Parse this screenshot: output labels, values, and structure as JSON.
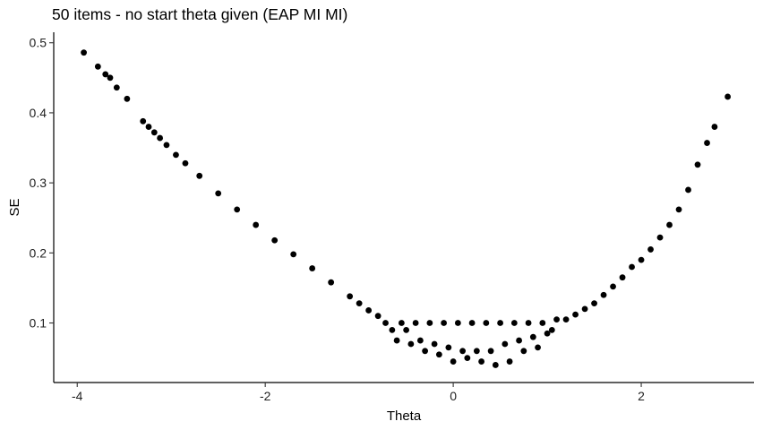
{
  "chart_data": {
    "type": "scatter",
    "title": "50 items - no start theta given (EAP MI MI)",
    "xlabel": "Theta",
    "ylabel": "SE",
    "xlim": [
      -4.25,
      3.2
    ],
    "ylim": [
      0.015,
      0.515
    ],
    "x_ticks": [
      -4,
      -2,
      0,
      2
    ],
    "x_tick_labels": [
      "-4",
      "-2",
      "0",
      "2"
    ],
    "y_ticks": [
      0.1,
      0.2,
      0.3,
      0.4,
      0.5
    ],
    "y_tick_labels": [
      "0.1",
      "0.2",
      "0.3",
      "0.4",
      "0.5"
    ],
    "grid": false,
    "legend": "none",
    "point_color": "#000000",
    "series": [
      {
        "values": [
          {
            "x": -3.93,
            "y": 0.486
          },
          {
            "x": -3.78,
            "y": 0.466
          },
          {
            "x": -3.7,
            "y": 0.455
          },
          {
            "x": -3.65,
            "y": 0.45
          },
          {
            "x": -3.58,
            "y": 0.436
          },
          {
            "x": -3.47,
            "y": 0.42
          },
          {
            "x": -3.3,
            "y": 0.388
          },
          {
            "x": -3.24,
            "y": 0.38
          },
          {
            "x": -3.18,
            "y": 0.372
          },
          {
            "x": -3.12,
            "y": 0.364
          },
          {
            "x": -3.05,
            "y": 0.354
          },
          {
            "x": -2.95,
            "y": 0.34
          },
          {
            "x": -2.85,
            "y": 0.328
          },
          {
            "x": -2.7,
            "y": 0.31
          },
          {
            "x": -2.5,
            "y": 0.285
          },
          {
            "x": -2.3,
            "y": 0.262
          },
          {
            "x": -2.1,
            "y": 0.24
          },
          {
            "x": -1.9,
            "y": 0.218
          },
          {
            "x": -1.7,
            "y": 0.198
          },
          {
            "x": -1.5,
            "y": 0.178
          },
          {
            "x": -1.3,
            "y": 0.158
          },
          {
            "x": -1.1,
            "y": 0.138
          },
          {
            "x": -1.0,
            "y": 0.128
          },
          {
            "x": -0.9,
            "y": 0.118
          },
          {
            "x": -0.8,
            "y": 0.11
          },
          {
            "x": -0.72,
            "y": 0.1
          },
          {
            "x": -0.65,
            "y": 0.09
          },
          {
            "x": -0.6,
            "y": 0.075
          },
          {
            "x": -0.55,
            "y": 0.1
          },
          {
            "x": -0.5,
            "y": 0.09
          },
          {
            "x": -0.45,
            "y": 0.07
          },
          {
            "x": -0.4,
            "y": 0.1
          },
          {
            "x": -0.35,
            "y": 0.075
          },
          {
            "x": -0.3,
            "y": 0.06
          },
          {
            "x": -0.25,
            "y": 0.1
          },
          {
            "x": -0.2,
            "y": 0.07
          },
          {
            "x": -0.15,
            "y": 0.055
          },
          {
            "x": -0.1,
            "y": 0.1
          },
          {
            "x": -0.05,
            "y": 0.065
          },
          {
            "x": 0.0,
            "y": 0.045
          },
          {
            "x": 0.05,
            "y": 0.1
          },
          {
            "x": 0.1,
            "y": 0.06
          },
          {
            "x": 0.15,
            "y": 0.05
          },
          {
            "x": 0.2,
            "y": 0.1
          },
          {
            "x": 0.25,
            "y": 0.06
          },
          {
            "x": 0.3,
            "y": 0.045
          },
          {
            "x": 0.35,
            "y": 0.1
          },
          {
            "x": 0.4,
            "y": 0.06
          },
          {
            "x": 0.45,
            "y": 0.04
          },
          {
            "x": 0.5,
            "y": 0.1
          },
          {
            "x": 0.55,
            "y": 0.07
          },
          {
            "x": 0.6,
            "y": 0.045
          },
          {
            "x": 0.65,
            "y": 0.1
          },
          {
            "x": 0.7,
            "y": 0.075
          },
          {
            "x": 0.75,
            "y": 0.06
          },
          {
            "x": 0.8,
            "y": 0.1
          },
          {
            "x": 0.85,
            "y": 0.08
          },
          {
            "x": 0.9,
            "y": 0.065
          },
          {
            "x": 0.95,
            "y": 0.1
          },
          {
            "x": 1.0,
            "y": 0.085
          },
          {
            "x": 1.05,
            "y": 0.09
          },
          {
            "x": 1.1,
            "y": 0.105
          },
          {
            "x": 1.2,
            "y": 0.105
          },
          {
            "x": 1.3,
            "y": 0.112
          },
          {
            "x": 1.4,
            "y": 0.12
          },
          {
            "x": 1.5,
            "y": 0.128
          },
          {
            "x": 1.6,
            "y": 0.14
          },
          {
            "x": 1.7,
            "y": 0.152
          },
          {
            "x": 1.8,
            "y": 0.165
          },
          {
            "x": 1.9,
            "y": 0.18
          },
          {
            "x": 2.0,
            "y": 0.19
          },
          {
            "x": 2.1,
            "y": 0.205
          },
          {
            "x": 2.2,
            "y": 0.222
          },
          {
            "x": 2.3,
            "y": 0.24
          },
          {
            "x": 2.4,
            "y": 0.262
          },
          {
            "x": 2.5,
            "y": 0.29
          },
          {
            "x": 2.6,
            "y": 0.326
          },
          {
            "x": 2.7,
            "y": 0.357
          },
          {
            "x": 2.78,
            "y": 0.38
          },
          {
            "x": 2.92,
            "y": 0.423
          }
        ]
      }
    ]
  }
}
